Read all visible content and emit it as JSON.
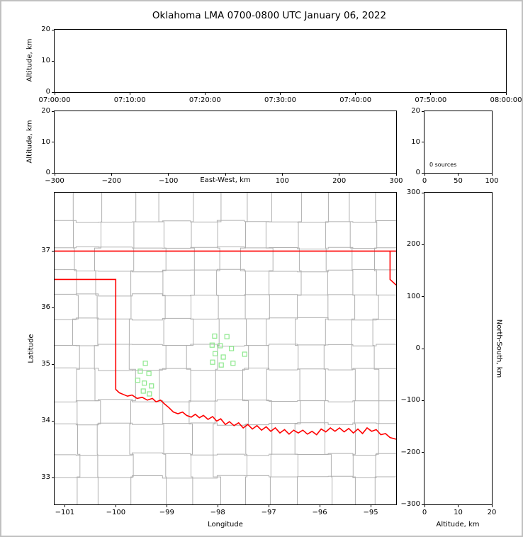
{
  "title": "Oklahoma LMA 0700-0800 UTC January 06, 2022",
  "colors": {
    "frame": "#000000",
    "figure_border": "#c0c0c0",
    "state_boundary": "#ff0000",
    "county_lines": "#b0b0b0",
    "station_marker": "#8de88d"
  },
  "chart_data": [
    {
      "id": "time_altitude_panel",
      "type": "scatter",
      "ylabel": "Altitude, km",
      "ylim": [
        0,
        20
      ],
      "yticks": [
        {
          "v": 0,
          "l": "0"
        },
        {
          "v": 10,
          "l": "10"
        },
        {
          "v": 20,
          "l": "20"
        }
      ],
      "xlim": [
        0,
        60
      ],
      "xticks": [
        {
          "v": 0,
          "l": "07:00:00"
        },
        {
          "v": 10,
          "l": "07:10:00"
        },
        {
          "v": 20,
          "l": "07:20:00"
        },
        {
          "v": 30,
          "l": "07:30:00"
        },
        {
          "v": 40,
          "l": "07:40:00"
        },
        {
          "v": 50,
          "l": "07:50:00"
        },
        {
          "v": 60,
          "l": "08:00:00"
        }
      ],
      "points": []
    },
    {
      "id": "east_west_altitude_panel",
      "type": "scatter",
      "xlabel": "East-West, km",
      "ylabel": "Altitude, km",
      "xlim": [
        -300,
        300
      ],
      "ylim": [
        0,
        20
      ],
      "xticks": [
        {
          "v": -300,
          "l": "−300"
        },
        {
          "v": -200,
          "l": "−200"
        },
        {
          "v": -100,
          "l": "−100"
        },
        {
          "v": 0,
          "l": ""
        },
        {
          "v": 100,
          "l": "100"
        },
        {
          "v": 200,
          "l": "200"
        },
        {
          "v": 300,
          "l": "300"
        }
      ],
      "yticks": [
        {
          "v": 0,
          "l": "0"
        },
        {
          "v": 10,
          "l": "10"
        },
        {
          "v": 20,
          "l": "20"
        }
      ],
      "points": []
    },
    {
      "id": "altitude_histogram_panel",
      "type": "histogram",
      "annotation": "0 sources",
      "xlim": [
        0,
        100
      ],
      "ylim": [
        0,
        20
      ],
      "xticks": [
        {
          "v": 0,
          "l": "0"
        },
        {
          "v": 50,
          "l": "50"
        },
        {
          "v": 100,
          "l": "100"
        }
      ],
      "yticks": [
        {
          "v": 0,
          "l": "0"
        },
        {
          "v": 10,
          "l": "10"
        },
        {
          "v": 20,
          "l": "20"
        }
      ],
      "values": []
    },
    {
      "id": "plan_view_map_panel",
      "type": "scatter",
      "xlabel": "Longitude",
      "ylabel": "Latitude",
      "xlim": [
        -101.2,
        -94.5
      ],
      "ylim": [
        32.53,
        38.03
      ],
      "xticks": [
        {
          "v": -101,
          "l": "−101"
        },
        {
          "v": -100,
          "l": "−100"
        },
        {
          "v": -99,
          "l": "−99"
        },
        {
          "v": -98,
          "l": "−98"
        },
        {
          "v": -97,
          "l": "−97"
        },
        {
          "v": -96,
          "l": "−96"
        },
        {
          "v": -95,
          "l": "−95"
        }
      ],
      "yticks": [
        {
          "v": 33,
          "l": "33"
        },
        {
          "v": 34,
          "l": "34"
        },
        {
          "v": 35,
          "l": "35"
        },
        {
          "v": 36,
          "l": "36"
        },
        {
          "v": 37,
          "l": "37"
        }
      ],
      "county_lines": true,
      "county_color": "#b0b0b0",
      "series": [
        {
          "name": "lma-station-markers",
          "marker": "open-square",
          "color": "#8de88d",
          "points": [
            [
              -98.06,
              35.5
            ],
            [
              -97.82,
              35.49
            ],
            [
              -98.11,
              35.34
            ],
            [
              -97.95,
              35.33
            ],
            [
              -97.73,
              35.28
            ],
            [
              -97.47,
              35.18
            ],
            [
              -98.05,
              35.19
            ],
            [
              -97.89,
              35.13
            ],
            [
              -98.1,
              35.04
            ],
            [
              -97.93,
              34.99
            ],
            [
              -97.7,
              35.02
            ],
            [
              -99.42,
              35.02
            ],
            [
              -99.52,
              34.88
            ],
            [
              -99.35,
              34.84
            ],
            [
              -99.57,
              34.72
            ],
            [
              -99.44,
              34.67
            ],
            [
              -99.3,
              34.62
            ],
            [
              -99.46,
              34.53
            ],
            [
              -99.34,
              34.48
            ]
          ]
        }
      ],
      "boundaries": {
        "name": "oklahoma-state-boundary",
        "color": "#ff0000",
        "segments": [
          [
            [
              -101.2,
              37.0
            ],
            [
              -94.5,
              37.0
            ]
          ],
          [
            [
              -94.62,
              37.0
            ],
            [
              -94.62,
              36.5
            ],
            [
              -94.5,
              36.4
            ]
          ],
          [
            [
              -101.2,
              36.5
            ],
            [
              -100.0,
              36.5
            ],
            [
              -100.0,
              34.56
            ],
            [
              -99.93,
              34.5
            ],
            [
              -99.85,
              34.47
            ],
            [
              -99.77,
              34.44
            ],
            [
              -99.68,
              34.46
            ],
            [
              -99.58,
              34.4
            ],
            [
              -99.48,
              34.42
            ],
            [
              -99.38,
              34.37
            ],
            [
              -99.28,
              34.4
            ],
            [
              -99.21,
              34.34
            ],
            [
              -99.12,
              34.37
            ],
            [
              -99.04,
              34.3
            ],
            [
              -98.96,
              34.24
            ],
            [
              -98.87,
              34.16
            ],
            [
              -98.78,
              34.13
            ],
            [
              -98.69,
              34.16
            ],
            [
              -98.61,
              34.1
            ],
            [
              -98.52,
              34.07
            ],
            [
              -98.44,
              34.12
            ],
            [
              -98.36,
              34.06
            ],
            [
              -98.28,
              34.1
            ],
            [
              -98.19,
              34.03
            ],
            [
              -98.1,
              34.08
            ],
            [
              -98.02,
              34.0
            ],
            [
              -97.94,
              34.04
            ],
            [
              -97.85,
              33.94
            ],
            [
              -97.77,
              33.99
            ],
            [
              -97.68,
              33.92
            ],
            [
              -97.59,
              33.97
            ],
            [
              -97.5,
              33.88
            ],
            [
              -97.41,
              33.94
            ],
            [
              -97.32,
              33.86
            ],
            [
              -97.23,
              33.92
            ],
            [
              -97.14,
              33.84
            ],
            [
              -97.05,
              33.9
            ],
            [
              -96.96,
              33.82
            ],
            [
              -96.87,
              33.88
            ],
            [
              -96.78,
              33.79
            ],
            [
              -96.69,
              33.85
            ],
            [
              -96.6,
              33.77
            ],
            [
              -96.51,
              33.84
            ],
            [
              -96.42,
              33.79
            ],
            [
              -96.33,
              33.84
            ],
            [
              -96.24,
              33.77
            ],
            [
              -96.15,
              33.82
            ],
            [
              -96.06,
              33.76
            ],
            [
              -95.97,
              33.86
            ],
            [
              -95.88,
              33.81
            ],
            [
              -95.79,
              33.88
            ],
            [
              -95.7,
              33.82
            ],
            [
              -95.61,
              33.88
            ],
            [
              -95.52,
              33.81
            ],
            [
              -95.43,
              33.87
            ],
            [
              -95.34,
              33.79
            ],
            [
              -95.25,
              33.86
            ],
            [
              -95.16,
              33.78
            ],
            [
              -95.07,
              33.88
            ],
            [
              -94.98,
              33.82
            ],
            [
              -94.89,
              33.85
            ],
            [
              -94.8,
              33.76
            ],
            [
              -94.71,
              33.78
            ],
            [
              -94.62,
              33.71
            ],
            [
              -94.5,
              33.68
            ]
          ]
        ]
      }
    },
    {
      "id": "north_south_altitude_panel",
      "type": "scatter",
      "xlabel": "Altitude, km",
      "ylabel": "North-South, km",
      "xlim": [
        0,
        20
      ],
      "ylim": [
        -300,
        300
      ],
      "xticks": [
        {
          "v": 0,
          "l": "0"
        },
        {
          "v": 10,
          "l": "10"
        },
        {
          "v": 20,
          "l": "20"
        }
      ],
      "yticks": [
        {
          "v": 300,
          "l": "300"
        },
        {
          "v": 200,
          "l": "200"
        },
        {
          "v": 100,
          "l": "100"
        },
        {
          "v": 0,
          "l": "0"
        },
        {
          "v": -100,
          "l": "−100"
        },
        {
          "v": -200,
          "l": "−200"
        },
        {
          "v": -300,
          "l": "−300"
        }
      ],
      "points": []
    }
  ]
}
